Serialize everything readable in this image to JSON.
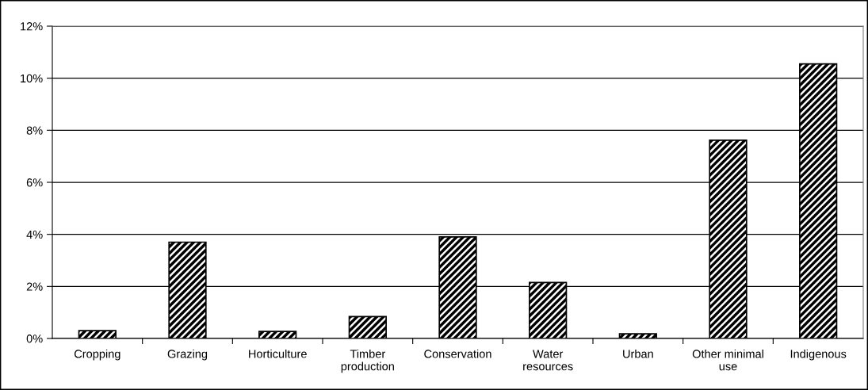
{
  "chart_data": {
    "type": "bar",
    "categories": [
      "Cropping",
      "Grazing",
      "Horticulture",
      "Timber\nproduction",
      "Conservation",
      "Water\nresources",
      "Urban",
      "Other minimal\nuse",
      "Indigenous"
    ],
    "values": [
      0.3,
      3.7,
      0.27,
      0.84,
      3.9,
      2.15,
      0.18,
      7.62,
      10.55
    ],
    "color": "#000000",
    "ylim": [
      0,
      12
    ],
    "yticks": [
      {
        "value": 0,
        "label": "0%"
      },
      {
        "value": 2,
        "label": "2%"
      },
      {
        "value": 4,
        "label": "4%"
      },
      {
        "value": 6,
        "label": "6%"
      },
      {
        "value": 8,
        "label": "8%"
      },
      {
        "value": 10,
        "label": "10%"
      },
      {
        "value": 12,
        "label": "12%"
      }
    ],
    "grid": "y",
    "legend": false
  }
}
